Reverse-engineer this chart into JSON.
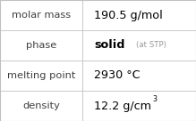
{
  "rows": [
    {
      "label": "molar mass",
      "value": "190.5 g/mol",
      "type": "plain"
    },
    {
      "label": "phase",
      "value": "solid",
      "value_suffix": "(at STP)",
      "type": "suffix"
    },
    {
      "label": "melting point",
      "value": "2930 °C",
      "type": "plain"
    },
    {
      "label": "density",
      "value_main": "12.2 g/cm",
      "value_super": "3",
      "type": "super"
    }
  ],
  "col_split": 0.42,
  "bg_color": "#ffffff",
  "border_color": "#c0c0c0",
  "label_color": "#404040",
  "value_color": "#000000",
  "suffix_color": "#999999",
  "label_fontsize": 8.2,
  "value_fontsize": 9.2,
  "suffix_fontsize": 6.2,
  "super_fontsize": 5.8
}
